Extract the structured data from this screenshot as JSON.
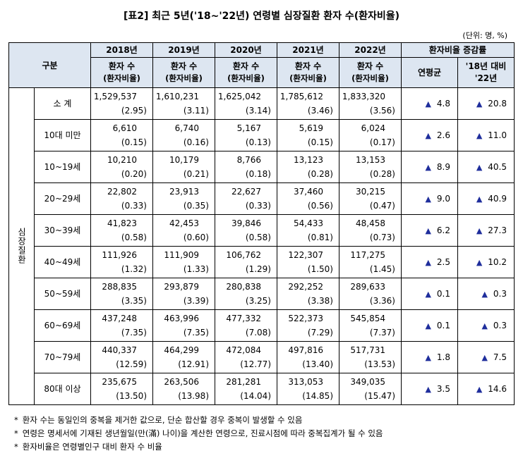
{
  "title": "[표2] 최근 5년('18~'22년) 연령별 심장질환 환자 수(환자비율)",
  "unit": "(단위: 명, %)",
  "header": {
    "group": "구분",
    "years": [
      "2018년",
      "2019년",
      "2020년",
      "2021년",
      "2022년"
    ],
    "sub_line1": "환자 수",
    "sub_line2": "(환자비율)",
    "rate_header": "환자비율 증감률",
    "annual_avg": "연평균",
    "vs_line1": "'18년 대비",
    "vs_line2": "'22년"
  },
  "side_label": "심장질환",
  "rows": [
    {
      "age": "소  계",
      "counts": [
        "1,529,537",
        "1,610,231",
        "1,625,042",
        "1,785,612",
        "1,833,320"
      ],
      "rates": [
        "(2.95)",
        "(3.11)",
        "(3.14)",
        "(3.46)",
        "(3.56)"
      ],
      "avg": "4.8",
      "vs": "20.8"
    },
    {
      "age": "10대 미만",
      "counts": [
        "6,610",
        "6,740",
        "5,167",
        "5,619",
        "6,024"
      ],
      "rates": [
        "(0.15)",
        "(0.16)",
        "(0.13)",
        "(0.15)",
        "(0.17)"
      ],
      "avg": "2.6",
      "vs": "11.0"
    },
    {
      "age": "10~19세",
      "counts": [
        "10,210",
        "10,179",
        "8,766",
        "13,123",
        "13,153"
      ],
      "rates": [
        "(0.20)",
        "(0.21)",
        "(0.18)",
        "(0.28)",
        "(0.28)"
      ],
      "avg": "8.9",
      "vs": "40.5"
    },
    {
      "age": "20~29세",
      "counts": [
        "22,802",
        "23,913",
        "22,627",
        "37,460",
        "30,215"
      ],
      "rates": [
        "(0.33)",
        "(0.35)",
        "(0.33)",
        "(0.56)",
        "(0.47)"
      ],
      "avg": "9.0",
      "vs": "40.9"
    },
    {
      "age": "30~39세",
      "counts": [
        "41,823",
        "42,453",
        "39,846",
        "54,433",
        "48,458"
      ],
      "rates": [
        "(0.58)",
        "(0.60)",
        "(0.58)",
        "(0.81)",
        "(0.73)"
      ],
      "avg": "6.2",
      "vs": "27.3"
    },
    {
      "age": "40~49세",
      "counts": [
        "111,926",
        "111,909",
        "106,762",
        "122,307",
        "117,275"
      ],
      "rates": [
        "(1.32)",
        "(1.33)",
        "(1.29)",
        "(1.50)",
        "(1.45)"
      ],
      "avg": "2.5",
      "vs": "10.2"
    },
    {
      "age": "50~59세",
      "counts": [
        "288,835",
        "293,879",
        "280,838",
        "292,252",
        "289,633"
      ],
      "rates": [
        "(3.35)",
        "(3.39)",
        "(3.25)",
        "(3.38)",
        "(3.36)"
      ],
      "avg": "0.1",
      "vs": "0.3"
    },
    {
      "age": "60~69세",
      "counts": [
        "437,248",
        "463,996",
        "477,332",
        "522,373",
        "545,854"
      ],
      "rates": [
        "(7.35)",
        "(7.35)",
        "(7.08)",
        "(7.29)",
        "(7.37)"
      ],
      "avg": "0.1",
      "vs": "0.3"
    },
    {
      "age": "70~79세",
      "counts": [
        "440,337",
        "464,299",
        "472,084",
        "497,816",
        "517,731"
      ],
      "rates": [
        "(12.59)",
        "(12.91)",
        "(12.77)",
        "(13.40)",
        "(13.53)"
      ],
      "avg": "1.8",
      "vs": "7.5"
    },
    {
      "age": "80대 이상",
      "counts": [
        "235,675",
        "263,506",
        "281,281",
        "313,053",
        "349,035"
      ],
      "rates": [
        "(13.50)",
        "(13.98)",
        "(14.04)",
        "(14.85)",
        "(15.47)"
      ],
      "avg": "3.5",
      "vs": "14.6"
    }
  ],
  "increase_symbol": "▲",
  "footnote_mark": "*",
  "footnotes": [
    "환자 수는 동일인의 중복을 제거한 값으로, 단순 합산할 경우 중복이 발생할 수 있음",
    "연령은 명세서에 기재된 생년월일(만(滿) 나이)을 계산한 연령으로, 진료시점에 따라 중복집계가 될 수 있음",
    "환자비율은 연령별인구 대비 환자 수 비율"
  ],
  "colors": {
    "header_bg": "#dde6f1",
    "triangle": "#1f2e9c"
  }
}
